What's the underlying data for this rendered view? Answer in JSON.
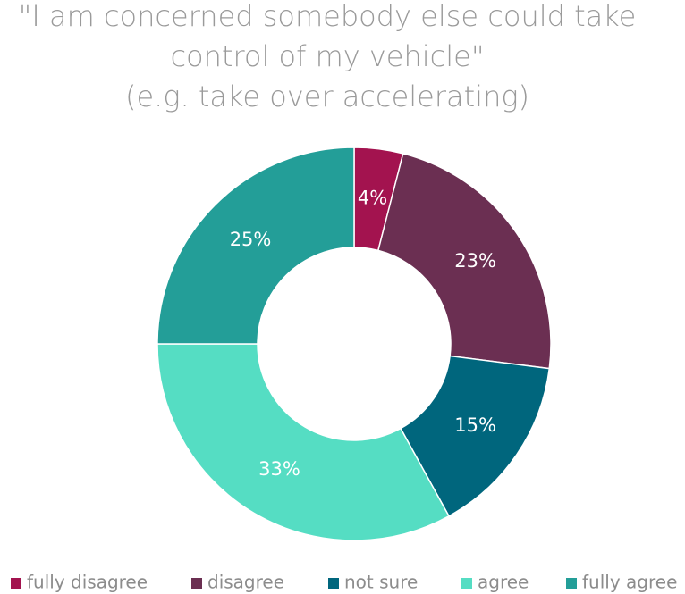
{
  "chart_data": {
    "type": "donut",
    "title": [
      "\"I am concerned somebody else could take",
      "control of my vehicle\"",
      "(e.g. take over accelerating)"
    ],
    "categories": [
      "fully disagree",
      "disagree",
      "not sure",
      "agree",
      "fully agree"
    ],
    "values": [
      4,
      23,
      15,
      33,
      25
    ],
    "value_labels": [
      "4%",
      "23%",
      "15%",
      "33%",
      "25%"
    ],
    "colors": [
      "#a3134f",
      "#6b2f52",
      "#00667d",
      "#55ddc3",
      "#239e98"
    ],
    "legend": "bottom"
  }
}
